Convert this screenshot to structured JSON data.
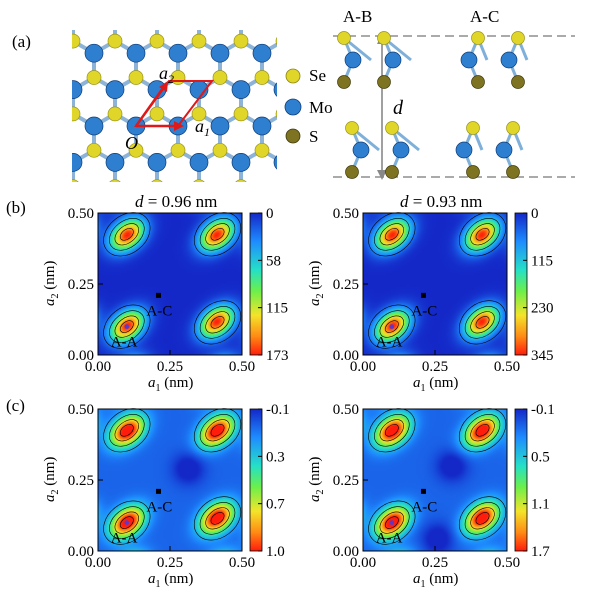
{
  "figure": {
    "panel_labels": [
      "(a)",
      "(b)",
      "(c)"
    ],
    "structure_top": {
      "lattice_labels": {
        "origin": "O",
        "a1": "a",
        "a1_sub": "1",
        "a2": "a",
        "a2_sub": "2"
      },
      "legend": [
        {
          "label": "Se",
          "color": "#e0d62a"
        },
        {
          "label": "Mo",
          "color": "#2f7fd0"
        },
        {
          "label": "S",
          "color": "#7d7320"
        }
      ]
    },
    "structure_side": {
      "stacking_labels": [
        "A-B",
        "A-C"
      ],
      "spacing_label": "d"
    }
  },
  "chart_data": [
    {
      "type": "heatmap",
      "panel": "(b)",
      "title_prefix": "d",
      "title_value": "= 0.96 nm",
      "xlabel_sym": "a",
      "xlabel_sub": "1",
      "xlabel_unit": " (nm)",
      "ylabel_sym": "a",
      "ylabel_sub": "2",
      "ylabel_unit": " (nm)",
      "x_ticks": [
        "0.00",
        "0.25",
        "0.50"
      ],
      "y_ticks": [
        "0.00",
        "0.25",
        "0.50"
      ],
      "xlim": [
        0,
        0.5
      ],
      "ylim": [
        0,
        0.5
      ],
      "colorbar_ticks": [
        "0",
        "58",
        "115",
        "173"
      ],
      "colorbar_range": [
        0,
        173
      ],
      "colorbar_reversed": false,
      "points": [
        {
          "label": "A-A",
          "x": 0.1,
          "y": 0.1
        },
        {
          "label": "A-C",
          "x": 0.21,
          "y": 0.21
        }
      ]
    },
    {
      "type": "heatmap",
      "panel": "(b)",
      "title_prefix": "d",
      "title_value": "= 0.93 nm",
      "xlabel_sym": "a",
      "xlabel_sub": "1",
      "xlabel_unit": " (nm)",
      "ylabel_sym": "a",
      "ylabel_sub": "2",
      "ylabel_unit": " (nm)",
      "x_ticks": [
        "0.00",
        "0.25",
        "0.50"
      ],
      "y_ticks": [
        "0.00",
        "0.25",
        "0.50"
      ],
      "xlim": [
        0,
        0.5
      ],
      "ylim": [
        0,
        0.5
      ],
      "colorbar_ticks": [
        "0",
        "115",
        "230",
        "345"
      ],
      "colorbar_range": [
        0,
        345
      ],
      "colorbar_reversed": false,
      "points": [
        {
          "label": "A-A",
          "x": 0.1,
          "y": 0.1
        },
        {
          "label": "A-C",
          "x": 0.21,
          "y": 0.21
        }
      ]
    },
    {
      "type": "heatmap",
      "panel": "(c)",
      "title_prefix": "",
      "title_value": "",
      "xlabel_sym": "a",
      "xlabel_sub": "1",
      "xlabel_unit": " (nm)",
      "ylabel_sym": "a",
      "ylabel_sub": "2",
      "ylabel_unit": " (nm)",
      "x_ticks": [
        "0.00",
        "0.25",
        "0.50"
      ],
      "y_ticks": [
        "0.00",
        "0.25",
        "0.50"
      ],
      "xlim": [
        0,
        0.5
      ],
      "ylim": [
        0,
        0.5
      ],
      "colorbar_ticks": [
        "-0.1",
        "0.3",
        "0.7",
        "1.0"
      ],
      "colorbar_range": [
        -0.1,
        1.0
      ],
      "colorbar_reversed": false,
      "points": [
        {
          "label": "A-A",
          "x": 0.1,
          "y": 0.1
        },
        {
          "label": "A-C",
          "x": 0.21,
          "y": 0.21
        }
      ]
    },
    {
      "type": "heatmap",
      "panel": "(c)",
      "title_prefix": "",
      "title_value": "",
      "xlabel_sym": "a",
      "xlabel_sub": "1",
      "xlabel_unit": " (nm)",
      "ylabel_sym": "a",
      "ylabel_sub": "2",
      "ylabel_unit": " (nm)",
      "x_ticks": [
        "0.00",
        "0.25",
        "0.50"
      ],
      "y_ticks": [
        "0.00",
        "0.25",
        "0.50"
      ],
      "xlim": [
        0,
        0.5
      ],
      "ylim": [
        0,
        0.5
      ],
      "colorbar_ticks": [
        "-0.1",
        "0.5",
        "1.1",
        "1.7"
      ],
      "colorbar_range": [
        -0.1,
        1.7
      ],
      "colorbar_reversed": false,
      "points": [
        {
          "label": "A-A",
          "x": 0.1,
          "y": 0.1
        },
        {
          "label": "A-C",
          "x": 0.21,
          "y": 0.21
        }
      ]
    }
  ]
}
